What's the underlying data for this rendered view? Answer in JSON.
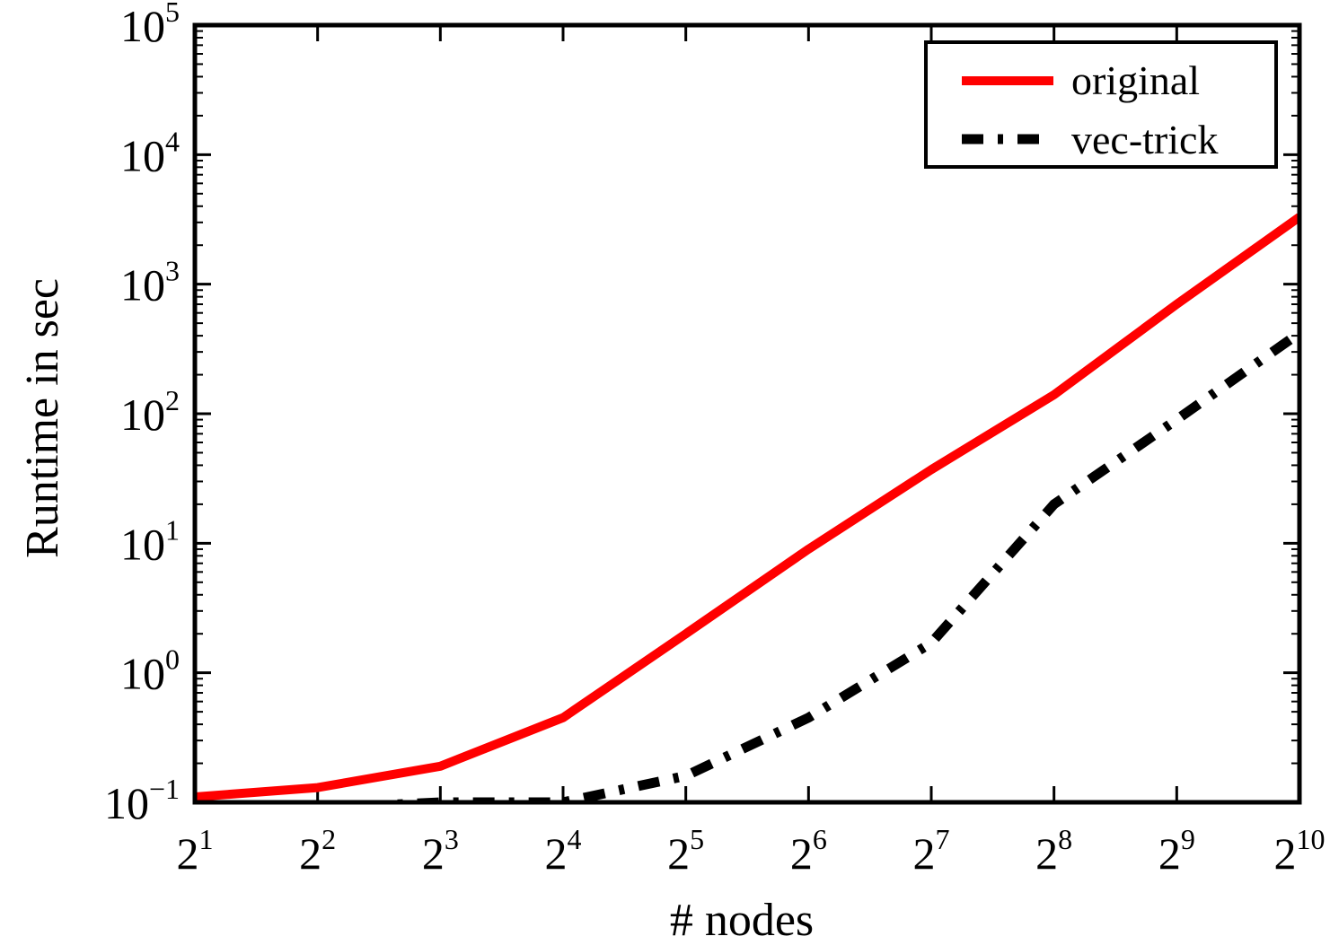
{
  "chart_data": {
    "type": "line",
    "title": "",
    "xlabel": "# nodes",
    "ylabel": "Runtime in sec",
    "x_scale": "log2",
    "y_scale": "log10",
    "x": [
      2,
      4,
      8,
      16,
      32,
      64,
      128,
      256,
      512,
      1024
    ],
    "x_tick_labels": [
      {
        "base": "2",
        "exp": "1"
      },
      {
        "base": "2",
        "exp": "2"
      },
      {
        "base": "2",
        "exp": "3"
      },
      {
        "base": "2",
        "exp": "4"
      },
      {
        "base": "2",
        "exp": "5"
      },
      {
        "base": "2",
        "exp": "6"
      },
      {
        "base": "2",
        "exp": "7"
      },
      {
        "base": "2",
        "exp": "8"
      },
      {
        "base": "2",
        "exp": "9"
      },
      {
        "base": "2",
        "exp": "10"
      }
    ],
    "y_tick_labels": [
      {
        "base": "10",
        "exp": "−1"
      },
      {
        "base": "10",
        "exp": "0"
      },
      {
        "base": "10",
        "exp": "1"
      },
      {
        "base": "10",
        "exp": "2"
      },
      {
        "base": "10",
        "exp": "3"
      },
      {
        "base": "10",
        "exp": "4"
      },
      {
        "base": "10",
        "exp": "5"
      }
    ],
    "xlim": [
      2,
      1024
    ],
    "ylim": [
      0.1,
      100000
    ],
    "grid": false,
    "legend_position": "top-right",
    "series": [
      {
        "name": "original",
        "color": "#ff0000",
        "style": "solid",
        "values": [
          0.11,
          0.13,
          0.19,
          0.45,
          2.0,
          9.0,
          37,
          140,
          700,
          3300
        ]
      },
      {
        "name": "vec-trick",
        "color": "#000000",
        "style": "dash-dot",
        "values": [
          0.08,
          0.09,
          0.1,
          0.1,
          0.16,
          0.45,
          1.7,
          20,
          90,
          420
        ]
      }
    ]
  }
}
